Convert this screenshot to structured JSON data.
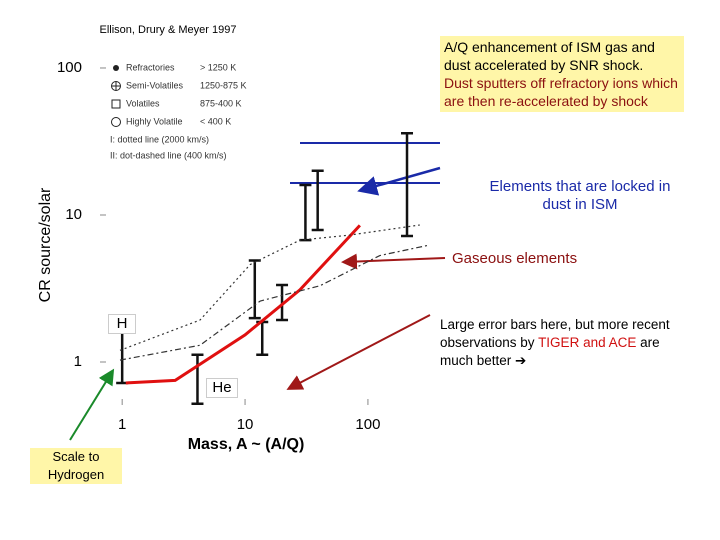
{
  "chart_data": {
    "type": "line",
    "title": "Ellison, Drury & Meyer 1997",
    "y_label": "CR source/solar",
    "x_label": "Mass, A ~ (A/Q)",
    "log_x": true,
    "log_y": true,
    "xlim": [
      0.66,
      320
    ],
    "ylim": [
      0.51,
      155
    ],
    "xticks": [
      1,
      10,
      100
    ],
    "yticks": [
      1,
      10,
      100
    ],
    "legend": [
      {
        "name": "Refractories",
        "range": "> 1250 K"
      },
      {
        "name": "Semi-Volatiles",
        "range": "1250-875 K"
      },
      {
        "name": "Volatiles",
        "range": "875-400 K"
      },
      {
        "name": "Highly Volatile",
        "range": "< 400 K"
      }
    ],
    "line_notes": [
      "I: dotted line (2000 km/s)",
      "II: dot-dashed line (400 km/s)"
    ],
    "series": [
      {
        "style": "solid",
        "color": "#e01010",
        "x": [
          1.07,
          2.7,
          10,
          28,
          86
        ],
        "values": [
          0.72,
          0.75,
          1.53,
          3.1,
          8.5
        ]
      },
      {
        "style": "dotted",
        "color": "#333333",
        "x": [
          0.96,
          4.3,
          11,
          28,
          71,
          264
        ],
        "values": [
          1.2,
          1.93,
          4.6,
          6.75,
          7.3,
          8.55
        ]
      },
      {
        "style": "dotdash",
        "color": "#333333",
        "x": [
          0.96,
          4.3,
          13.3,
          40.7,
          125,
          318
        ],
        "values": [
          1.03,
          1.3,
          2.6,
          3.3,
          5.3,
          6.25
        ]
      }
    ],
    "error_bars": {
      "x": [
        1,
        4.1,
        12,
        13.8,
        20,
        31,
        39,
        208
      ],
      "high": [
        1.78,
        1.12,
        4.9,
        1.87,
        3.34,
        16,
        20,
        36
      ],
      "low": [
        0.72,
        0.52,
        1.99,
        1.12,
        1.93,
        6.75,
        7.9,
        7.2
      ]
    },
    "reference_lines": {
      "color": "#1a2aa8",
      "values": [
        30.9,
        16.5
      ]
    },
    "annotations": {
      "h": "H",
      "he": "He",
      "ism_box": [
        "A/Q enhancement of ISM gas and dust accelerated by SNR shock.",
        "Dust sputters off refractory ions which are then re-accelerated by shock"
      ],
      "dust": "Elements that are locked in dust in ISM",
      "gas": "Gaseous elements",
      "errors": [
        "Large error bars here, but more recent observations by ",
        "TIGER and ACE",
        " are much better ",
        "➔"
      ],
      "scale": "Scale to Hydrogen"
    }
  }
}
